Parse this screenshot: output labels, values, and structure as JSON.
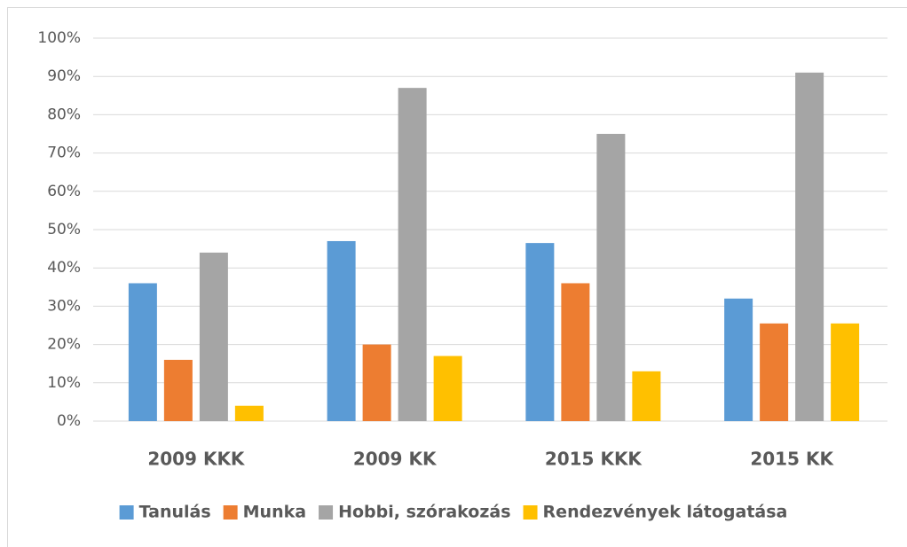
{
  "chart_data": {
    "type": "bar",
    "categories": [
      "2009 KKK",
      "2009 KK",
      "2015 KKK",
      "2015 KK"
    ],
    "series": [
      {
        "name": "Tanulás",
        "color": "#5b9bd5",
        "values": [
          36,
          47,
          46.5,
          32
        ]
      },
      {
        "name": "Munka",
        "color": "#ed7d31",
        "values": [
          16,
          20,
          36,
          25.5
        ]
      },
      {
        "name": "Hobbi, szórakozás",
        "color": "#a5a5a5",
        "values": [
          44,
          87,
          75,
          91
        ]
      },
      {
        "name": "Rendezvények látogatása",
        "color": "#ffc000",
        "values": [
          4,
          17,
          13,
          25.5
        ]
      }
    ],
    "ylim": [
      0,
      100
    ],
    "yticks": [
      {
        "value": 0,
        "label": "0%"
      },
      {
        "value": 10,
        "label": "10%"
      },
      {
        "value": 20,
        "label": "20%"
      },
      {
        "value": 30,
        "label": "30%"
      },
      {
        "value": 40,
        "label": "40%"
      },
      {
        "value": 50,
        "label": "50%"
      },
      {
        "value": 60,
        "label": "60%"
      },
      {
        "value": 70,
        "label": "70%"
      },
      {
        "value": 80,
        "label": "80%"
      },
      {
        "value": 90,
        "label": "90%"
      },
      {
        "value": 100,
        "label": "100%"
      }
    ],
    "grid": true,
    "legend": "bottom"
  }
}
